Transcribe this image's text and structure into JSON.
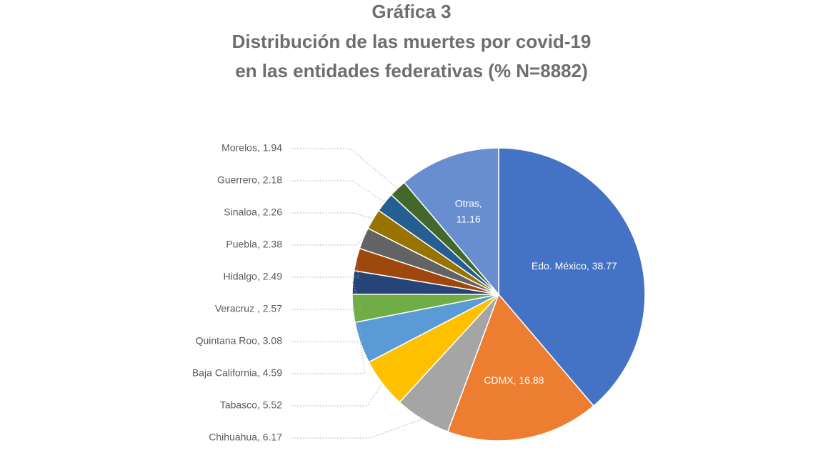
{
  "chart_data": {
    "type": "pie",
    "title": "Gráfica 3",
    "subtitle": [
      "Distribución de las muertes por covid-19",
      "en las entidades federativas (% N=8882)"
    ],
    "values": [
      38.77,
      16.88,
      6.17,
      5.52,
      4.59,
      3.08,
      2.57,
      2.49,
      2.38,
      2.26,
      2.18,
      1.94,
      11.16
    ],
    "value_labels": [
      "Edo. México, 38.77",
      "CDMX, 16.88",
      "Chihuahua, 6.17",
      "Tabasco, 5.52",
      "Baja California, 4.59",
      "Quintana Roo, 3.08",
      "Veracruz , 2.57",
      "Hidalgo, 2.49",
      "Puebla, 2.38",
      "Sinaloa, 2.26",
      "Guerrero, 2.18",
      "Morelos, 1.94",
      "Otras, 11.16"
    ],
    "colors": [
      "#4472c4",
      "#ed7d31",
      "#a5a5a5",
      "#ffc000",
      "#5b9bd5",
      "#70ad47",
      "#264478",
      "#9e480e",
      "#636363",
      "#997300",
      "#255e91",
      "#43682b",
      "#698ed0"
    ]
  }
}
